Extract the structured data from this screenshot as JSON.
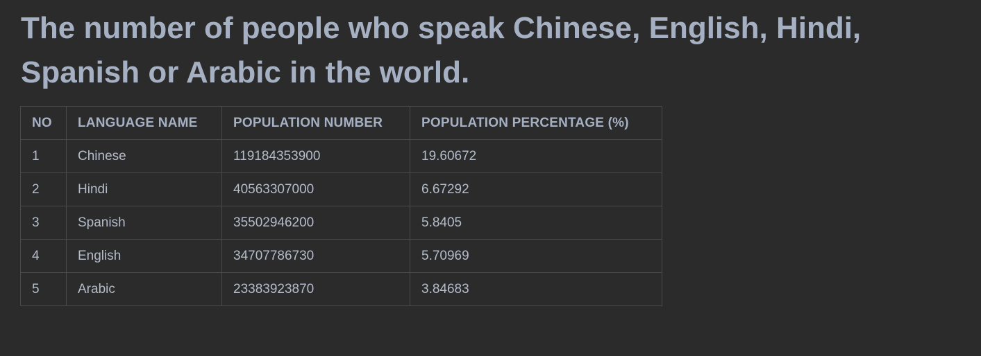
{
  "page": {
    "title": "The number of people who speak Chinese, English, Hindi, Spanish or Arabic in the world."
  },
  "table": {
    "headers": {
      "no": "NO",
      "name": "LANGUAGE NAME",
      "population": "POPULATION NUMBER",
      "percentage": "POPULATION PERCENTAGE (%)"
    },
    "rows": [
      {
        "no": "1",
        "name": "Chinese",
        "population": "119184353900",
        "percentage": "19.60672"
      },
      {
        "no": "2",
        "name": "Hindi",
        "population": "40563307000",
        "percentage": "6.67292"
      },
      {
        "no": "3",
        "name": "Spanish",
        "population": "35502946200",
        "percentage": "5.8405"
      },
      {
        "no": "4",
        "name": "English",
        "population": "34707786730",
        "percentage": "5.70969"
      },
      {
        "no": "5",
        "name": "Arabic",
        "population": "23383923870",
        "percentage": "3.84683"
      }
    ]
  },
  "colors": {
    "background": "#2b2b2b",
    "text": "#a6b0c3",
    "border": "#4a4a4a"
  }
}
